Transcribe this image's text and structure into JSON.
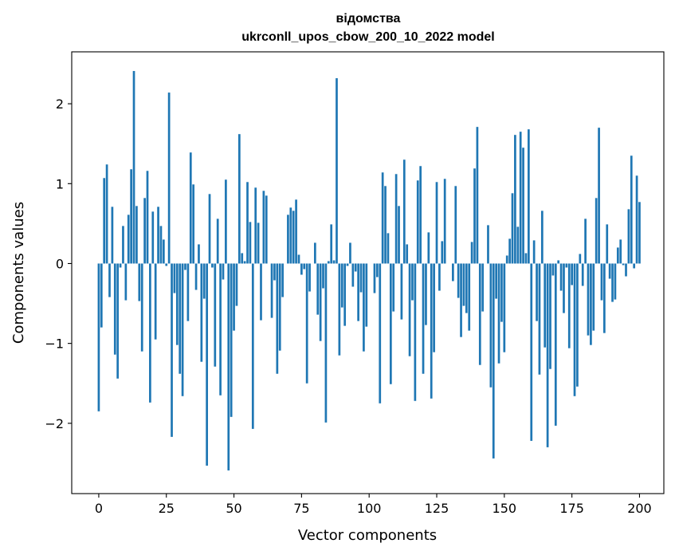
{
  "chart_data": {
    "type": "bar",
    "title_line1": "відомства",
    "title_line2": "ukrconll_upos_cbow_200_10_2022 model",
    "xlabel": "Vector components",
    "ylabel": "Components values",
    "xlim": [
      -10,
      209
    ],
    "ylim": [
      -2.88,
      2.65
    ],
    "xticks": [
      0,
      25,
      50,
      75,
      100,
      125,
      150,
      175,
      200
    ],
    "xtick_labels": [
      "0",
      "25",
      "50",
      "75",
      "100",
      "125",
      "150",
      "175",
      "200"
    ],
    "yticks": [
      -2,
      -1,
      0,
      1,
      2
    ],
    "ytick_labels": [
      "−2",
      "−1",
      "0",
      "1",
      "2"
    ],
    "bar_color": "#1f77b4",
    "values": [
      -1.85,
      -0.8,
      1.07,
      1.24,
      -0.42,
      0.71,
      -1.14,
      -1.44,
      -0.05,
      0.47,
      -0.46,
      0.61,
      1.18,
      2.41,
      0.72,
      -0.47,
      -1.1,
      0.82,
      1.16,
      -1.74,
      0.65,
      -0.95,
      0.71,
      0.47,
      0.3,
      -0.03,
      2.14,
      -2.17,
      -0.37,
      -1.02,
      -1.38,
      -1.66,
      -0.08,
      -0.72,
      1.39,
      0.99,
      -0.33,
      0.24,
      -1.23,
      -0.44,
      -2.53,
      0.87,
      -0.05,
      -1.29,
      0.56,
      -1.65,
      -0.2,
      1.05,
      -2.59,
      -1.92,
      -0.84,
      -0.53,
      1.62,
      0.13,
      0.03,
      1.02,
      0.52,
      -2.07,
      0.95,
      0.51,
      -0.71,
      0.91,
      0.85,
      0.0,
      -0.68,
      -0.21,
      -1.38,
      -1.09,
      -0.42,
      0.0,
      0.61,
      0.7,
      0.66,
      0.8,
      0.11,
      -0.14,
      -0.07,
      -1.5,
      -0.35,
      0.0,
      0.26,
      -0.64,
      -0.97,
      -0.31,
      -1.99,
      0.03,
      0.49,
      0.04,
      2.32,
      -1.15,
      -0.55,
      -0.78,
      -0.03,
      0.26,
      -0.29,
      -0.1,
      -0.72,
      -0.36,
      -1.1,
      -0.79,
      0.0,
      0.0,
      -0.37,
      -0.17,
      -1.75,
      1.14,
      0.97,
      0.38,
      -1.51,
      -0.6,
      1.12,
      0.72,
      -0.7,
      1.3,
      0.24,
      -1.16,
      -0.46,
      -1.72,
      1.04,
      1.22,
      -1.38,
      -0.77,
      0.39,
      -1.69,
      -1.11,
      1.02,
      -0.34,
      0.28,
      1.06,
      0.0,
      0.0,
      -0.22,
      0.97,
      -0.43,
      -0.92,
      -0.53,
      -0.62,
      -0.84,
      0.27,
      1.19,
      1.71,
      -1.27,
      -0.6,
      0.0,
      0.48,
      -1.55,
      -2.44,
      -0.44,
      -1.25,
      -0.73,
      -1.11,
      0.1,
      0.31,
      0.88,
      1.61,
      0.46,
      1.65,
      1.45,
      0.13,
      1.68,
      -2.22,
      0.29,
      -0.72,
      -1.39,
      0.66,
      -1.05,
      -2.3,
      -1.32,
      -0.15,
      -2.03,
      0.04,
      -0.34,
      -0.62,
      -0.05,
      -1.06,
      -0.27,
      -1.66,
      -1.54,
      0.12,
      -0.28,
      0.56,
      -0.9,
      -1.02,
      -0.84,
      0.82,
      1.7,
      -0.46,
      -0.87,
      0.49,
      -0.19,
      -0.48,
      -0.45,
      0.2,
      0.3,
      -0.02,
      -0.16,
      0.68,
      1.35,
      -0.06,
      1.1,
      0.77
    ]
  }
}
